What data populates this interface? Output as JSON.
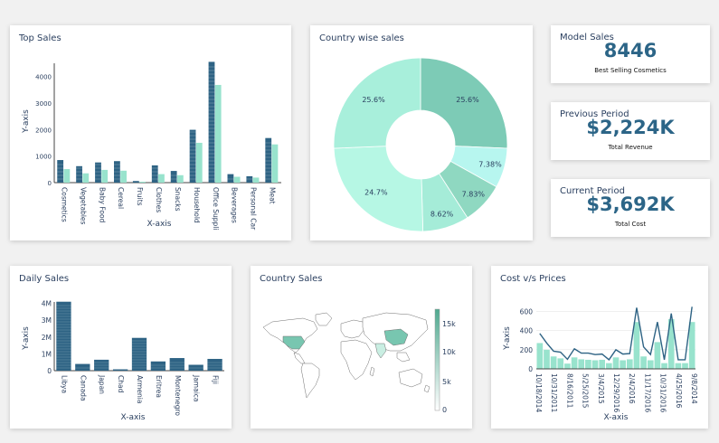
{
  "colors": {
    "dark": "#2e6384",
    "light": "#98e3cd",
    "teal": "#3d8b8b"
  },
  "cards": {
    "top_sales": {
      "title": "Top Sales",
      "chart_data": {
        "type": "bar",
        "categories": [
          "Cosmetics",
          "Vegetables",
          "Baby Food",
          "Cereal",
          "Fruits",
          "Clothes",
          "Snacks",
          "Household",
          "Office Suppli",
          "Beverages",
          "Personal Car",
          "Meat"
        ],
        "series": [
          {
            "values": [
              850,
              620,
              760,
              810,
              60,
              650,
              440,
              1990,
              4550,
              320,
              240,
              1680
            ]
          },
          {
            "values": [
              510,
              350,
              480,
              450,
              35,
              320,
              280,
              1500,
              3680,
              220,
              190,
              1440
            ]
          }
        ],
        "yticks": [
          0,
          1000,
          2000,
          3000,
          4000
        ],
        "ylim": [
          0,
          4700
        ],
        "xlabel": "X-axis",
        "ylabel": "Y-axis"
      }
    },
    "country_wise": {
      "title": "Country wise sales",
      "chart_data": {
        "type": "pie",
        "hole": true,
        "slices": [
          {
            "value": 25.6,
            "label": "25.6%",
            "color": "#7dcbb6"
          },
          {
            "value": 7.38,
            "label": "7.38%",
            "color": "#b7f6ef"
          },
          {
            "value": 7.83,
            "label": "7.83%",
            "color": "#8fd8c1"
          },
          {
            "value": 8.62,
            "label": "8.62%",
            "color": "#a5ecd8"
          },
          {
            "value": 24.7,
            "label": "24.7%",
            "color": "#b6f7e4"
          },
          {
            "value": 25.6,
            "label": "25.6%",
            "color": "#a8efdb"
          }
        ]
      }
    },
    "model_sales": {
      "title": "Model Sales",
      "value": "8446",
      "subtitle": "Best Selling Cosmetics"
    },
    "previous_period": {
      "title": "Previous Period",
      "value": "$2,224K",
      "subtitle": "Total Revenue"
    },
    "current_period": {
      "title": "Current Period",
      "value": "$3,692K",
      "subtitle": "Total Cost"
    },
    "daily_sales": {
      "title": "Daily Sales",
      "chart_data": {
        "type": "bar",
        "categories": [
          "Libya",
          "Canada",
          "Japan",
          "Chad",
          "Armenia",
          "Eritrea",
          "Montenegro",
          "Jamaica",
          "Fiji"
        ],
        "values": [
          4100000,
          400000,
          650000,
          80000,
          1950000,
          550000,
          750000,
          350000,
          700000
        ],
        "yticks": [
          "0",
          "1M",
          "2M",
          "3M",
          "4M"
        ],
        "ytick_values": [
          0,
          1000000,
          2000000,
          3000000,
          4000000
        ],
        "ylim": [
          0,
          4300000
        ],
        "xlabel": "X-axis",
        "ylabel": "Y-axis"
      }
    },
    "country_sales": {
      "title": "Country Sales",
      "colorbar_ticks": [
        "15k",
        "10k",
        "5k",
        "0"
      ]
    },
    "cost_prices": {
      "title": "Cost v/s Prices",
      "chart_data": {
        "type": "line",
        "x_ticks": [
          "10/18/2014",
          "10/31/2011",
          "8/16/2011",
          "5/25/2015",
          "3/4/2015",
          "12/29/2016",
          "2/4/2016",
          "11/17/2016",
          "10/31/2016",
          "4/25/2016",
          "9/8/2014"
        ],
        "bars": [
          270,
          200,
          130,
          110,
          55,
          120,
          100,
          95,
          90,
          95,
          60,
          120,
          90,
          100,
          490,
          130,
          90,
          280,
          60,
          520,
          60,
          60,
          490
        ],
        "line": [
          370,
          270,
          185,
          175,
          100,
          210,
          165,
          165,
          150,
          155,
          95,
          200,
          155,
          160,
          640,
          230,
          150,
          490,
          95,
          580,
          95,
          95,
          650
        ],
        "yticks": [
          0,
          200,
          400,
          600
        ],
        "ylim": [
          0,
          700
        ],
        "xlabel": "X-axis",
        "ylabel": "Y-axis"
      }
    }
  }
}
